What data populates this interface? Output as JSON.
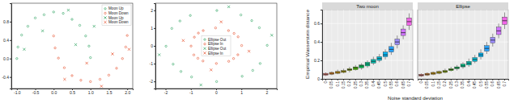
{
  "chart_data": [
    {
      "type": "scatter",
      "xlim": [
        -1.15,
        2.15
      ],
      "xticks": [
        {
          "value": -1,
          "label": "-1.0"
        },
        -0.5,
        {
          "value": 0,
          "label": "0.0"
        },
        0.5,
        {
          "value": 1,
          "label": "1.0"
        },
        1.5,
        {
          "value": 2,
          "label": "2.0"
        }
      ],
      "ylim": [
        -0.65,
        1.2
      ],
      "yticks": [
        -0.4,
        {
          "value": 0,
          "label": "0.0"
        },
        0.4,
        0.8
      ],
      "legend": "upper right",
      "series": [
        {
          "name": "Moon Up",
          "color": "#2ca25f",
          "marker": "circle",
          "x": [
            1.0,
            0.96,
            0.87,
            0.71,
            0.5,
            0.26,
            0.0,
            -0.26,
            -0.5,
            -0.7,
            -0.87,
            -0.97,
            -1.0
          ],
          "values": [
            0.02,
            0.27,
            0.49,
            0.72,
            0.85,
            0.98,
            1.01,
            0.95,
            0.88,
            0.7,
            0.51,
            0.25,
            0.0
          ]
        },
        {
          "name": "Moon Down",
          "color": "#e6502d",
          "marker": "circle",
          "x": [
            0.0,
            0.04,
            0.13,
            0.29,
            0.5,
            0.74,
            1.0,
            1.26,
            1.5,
            1.71,
            1.87,
            1.96,
            2.0
          ],
          "values": [
            0.49,
            0.23,
            0.01,
            -0.2,
            -0.37,
            -0.47,
            -0.5,
            -0.45,
            -0.36,
            -0.21,
            0.0,
            0.25,
            0.5
          ]
        },
        {
          "name": "Moon Up",
          "color": "#2ca25f",
          "marker": "x",
          "x": [
            -0.3,
            0.4,
            -0.8,
            0.6,
            1.1
          ],
          "values": [
            0.6,
            1.05,
            0.2,
            0.3,
            0.7
          ]
        },
        {
          "name": "Moon Down",
          "color": "#e6502d",
          "marker": "x",
          "x": [
            0.3,
            1.6,
            0.9,
            1.3,
            2.05
          ],
          "values": [
            -0.45,
            0.1,
            -0.1,
            -0.6,
            0.2
          ]
        }
      ]
    },
    {
      "type": "scatter",
      "xlim": [
        -2.4,
        2.4
      ],
      "xticks": [
        -2,
        -1,
        0,
        1,
        2
      ],
      "ylim": [
        -2.4,
        2.4
      ],
      "yticks": [
        -2,
        -1,
        0,
        1,
        2
      ],
      "legend": "center",
      "series": [
        {
          "name": "Ellipse Out",
          "color": "#2ca25f",
          "marker": "circle",
          "x": [
            2.02,
            1.71,
            0.98,
            0.03,
            -1.02,
            -1.75,
            -1.98,
            -1.7,
            -0.97,
            0.02,
            1.03,
            1.74,
            1.41,
            -1.43,
            -1.39,
            1.45
          ],
          "values": [
            0.03,
            1.02,
            1.74,
            1.99,
            1.71,
            0.98,
            -0.02,
            -1.03,
            -1.75,
            -2.01,
            -1.71,
            -0.99,
            1.42,
            1.4,
            -1.44,
            -1.38
          ]
        },
        {
          "name": "Ellipse In",
          "color": "#e6502d",
          "marker": "circle",
          "x": [
            1.01,
            0.87,
            0.49,
            -0.02,
            -0.51,
            -0.86,
            -0.99,
            -0.88,
            -0.52,
            0.01,
            0.5,
            0.86,
            0.71,
            -0.7,
            -0.72,
            0.69
          ],
          "values": [
            0.02,
            0.51,
            0.86,
            1.01,
            0.86,
            0.49,
            -0.01,
            -0.51,
            -0.85,
            -0.99,
            -0.87,
            -0.5,
            0.7,
            0.72,
            -0.7,
            -0.71
          ]
        },
        {
          "name": "Ellipse Out",
          "color": "#2ca25f",
          "marker": "x",
          "x": [
            2.2,
            -2.25,
            0.5,
            -0.6
          ],
          "values": [
            0.6,
            -0.5,
            2.2,
            -2.2
          ]
        },
        {
          "name": "Ellipse In",
          "color": "#e6502d",
          "marker": "x",
          "x": [
            1.3,
            -1.3,
            0.2,
            -0.2
          ],
          "values": [
            -0.3,
            0.3,
            1.35,
            -1.35
          ]
        }
      ]
    },
    {
      "type": "box",
      "title": "Two moon",
      "x_label": "Noise standard deviation",
      "y_label": "Empirical Wasserstein distance",
      "categories": [
        "0",
        "0.05",
        "0.1",
        "0.15",
        "0.2",
        "0.25",
        "0.3",
        "0.35",
        "0.4",
        "0.45",
        "0.5",
        "0.55",
        "0.6",
        "0.65",
        "0.7"
      ],
      "colors": [
        "#f8766d",
        "#e7851e",
        "#d09400",
        "#b2a100",
        "#89ac00",
        "#45b500",
        "#00bc51",
        "#00c087",
        "#00c0b2",
        "#00bcd6",
        "#00b3f2",
        "#29a3ff",
        "#9c8dff",
        "#d277ff",
        "#f166e8"
      ],
      "ylim": [
        0,
        0.75
      ],
      "yticks": [
        0,
        0.2,
        0.4,
        0.6
      ],
      "grid": true,
      "min": [
        0.03,
        0.04,
        0.05,
        0.06,
        0.07,
        0.09,
        0.1,
        0.12,
        0.15,
        0.18,
        0.21,
        0.26,
        0.33,
        0.43,
        0.53
      ],
      "q1": [
        0.04,
        0.05,
        0.06,
        0.07,
        0.09,
        0.1,
        0.12,
        0.14,
        0.17,
        0.2,
        0.24,
        0.29,
        0.37,
        0.47,
        0.58
      ],
      "median": [
        0.05,
        0.06,
        0.07,
        0.08,
        0.1,
        0.12,
        0.14,
        0.16,
        0.19,
        0.22,
        0.26,
        0.32,
        0.4,
        0.5,
        0.62
      ],
      "q3": [
        0.06,
        0.07,
        0.08,
        0.09,
        0.11,
        0.13,
        0.15,
        0.18,
        0.21,
        0.24,
        0.29,
        0.35,
        0.43,
        0.54,
        0.66
      ],
      "max": [
        0.07,
        0.08,
        0.1,
        0.11,
        0.13,
        0.15,
        0.17,
        0.2,
        0.24,
        0.27,
        0.32,
        0.39,
        0.47,
        0.58,
        0.71
      ]
    },
    {
      "type": "box",
      "title": "Ellipse",
      "categories": [
        "0",
        "0.05",
        "0.1",
        "0.15",
        "0.2",
        "0.25",
        "0.3",
        "0.35",
        "0.4",
        "0.45",
        "0.5",
        "0.55",
        "0.6",
        "0.65",
        "0.7"
      ],
      "colors": [
        "#f8766d",
        "#e7851e",
        "#d09400",
        "#b2a100",
        "#89ac00",
        "#45b500",
        "#00bc51",
        "#00c087",
        "#00c0b2",
        "#00bcd6",
        "#00b3f2",
        "#29a3ff",
        "#9c8dff",
        "#d277ff",
        "#f166e8"
      ],
      "ylim": [
        0,
        0.75
      ],
      "yticks": [
        0,
        0.2,
        0.4,
        0.6
      ],
      "grid": true,
      "tick_labels": "x",
      "min": [
        0.02,
        0.03,
        0.04,
        0.05,
        0.06,
        0.08,
        0.09,
        0.11,
        0.13,
        0.17,
        0.21,
        0.27,
        0.35,
        0.44,
        0.54
      ],
      "q1": [
        0.03,
        0.04,
        0.05,
        0.06,
        0.07,
        0.09,
        0.11,
        0.13,
        0.15,
        0.19,
        0.24,
        0.3,
        0.39,
        0.48,
        0.59
      ],
      "median": [
        0.04,
        0.05,
        0.06,
        0.07,
        0.08,
        0.1,
        0.12,
        0.14,
        0.17,
        0.21,
        0.26,
        0.33,
        0.42,
        0.52,
        0.63
      ],
      "q3": [
        0.05,
        0.06,
        0.07,
        0.08,
        0.09,
        0.11,
        0.13,
        0.16,
        0.19,
        0.23,
        0.28,
        0.36,
        0.45,
        0.56,
        0.67
      ],
      "max": [
        0.06,
        0.07,
        0.08,
        0.09,
        0.11,
        0.13,
        0.15,
        0.18,
        0.22,
        0.26,
        0.32,
        0.4,
        0.49,
        0.6,
        0.72
      ]
    }
  ]
}
